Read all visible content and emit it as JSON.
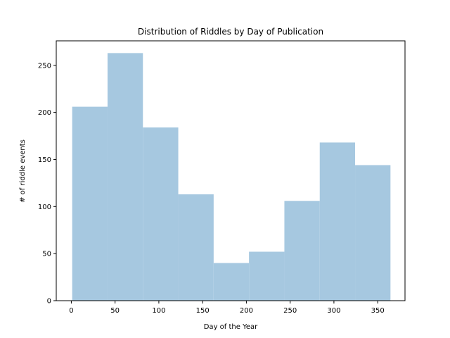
{
  "chart_data": {
    "type": "bar",
    "title": "Distribution of Riddles by Day of Publication",
    "xlabel": "Day of the Year",
    "ylabel": "# of riddle events",
    "xlim": [
      -17.2,
      381.2
    ],
    "ylim": [
      0,
      276
    ],
    "xticks": [
      0,
      50,
      100,
      150,
      200,
      250,
      300,
      350
    ],
    "yticks": [
      0,
      50,
      100,
      150,
      200,
      250
    ],
    "bin_edges": [
      1,
      41.4,
      81.8,
      122.2,
      162.6,
      203,
      243.4,
      283.8,
      324.2,
      364.6
    ],
    "values": [
      206,
      263,
      184,
      113,
      40,
      52,
      106,
      168,
      144
    ],
    "bar_color": "#a6c8e0",
    "grid": false,
    "legend": "none"
  }
}
